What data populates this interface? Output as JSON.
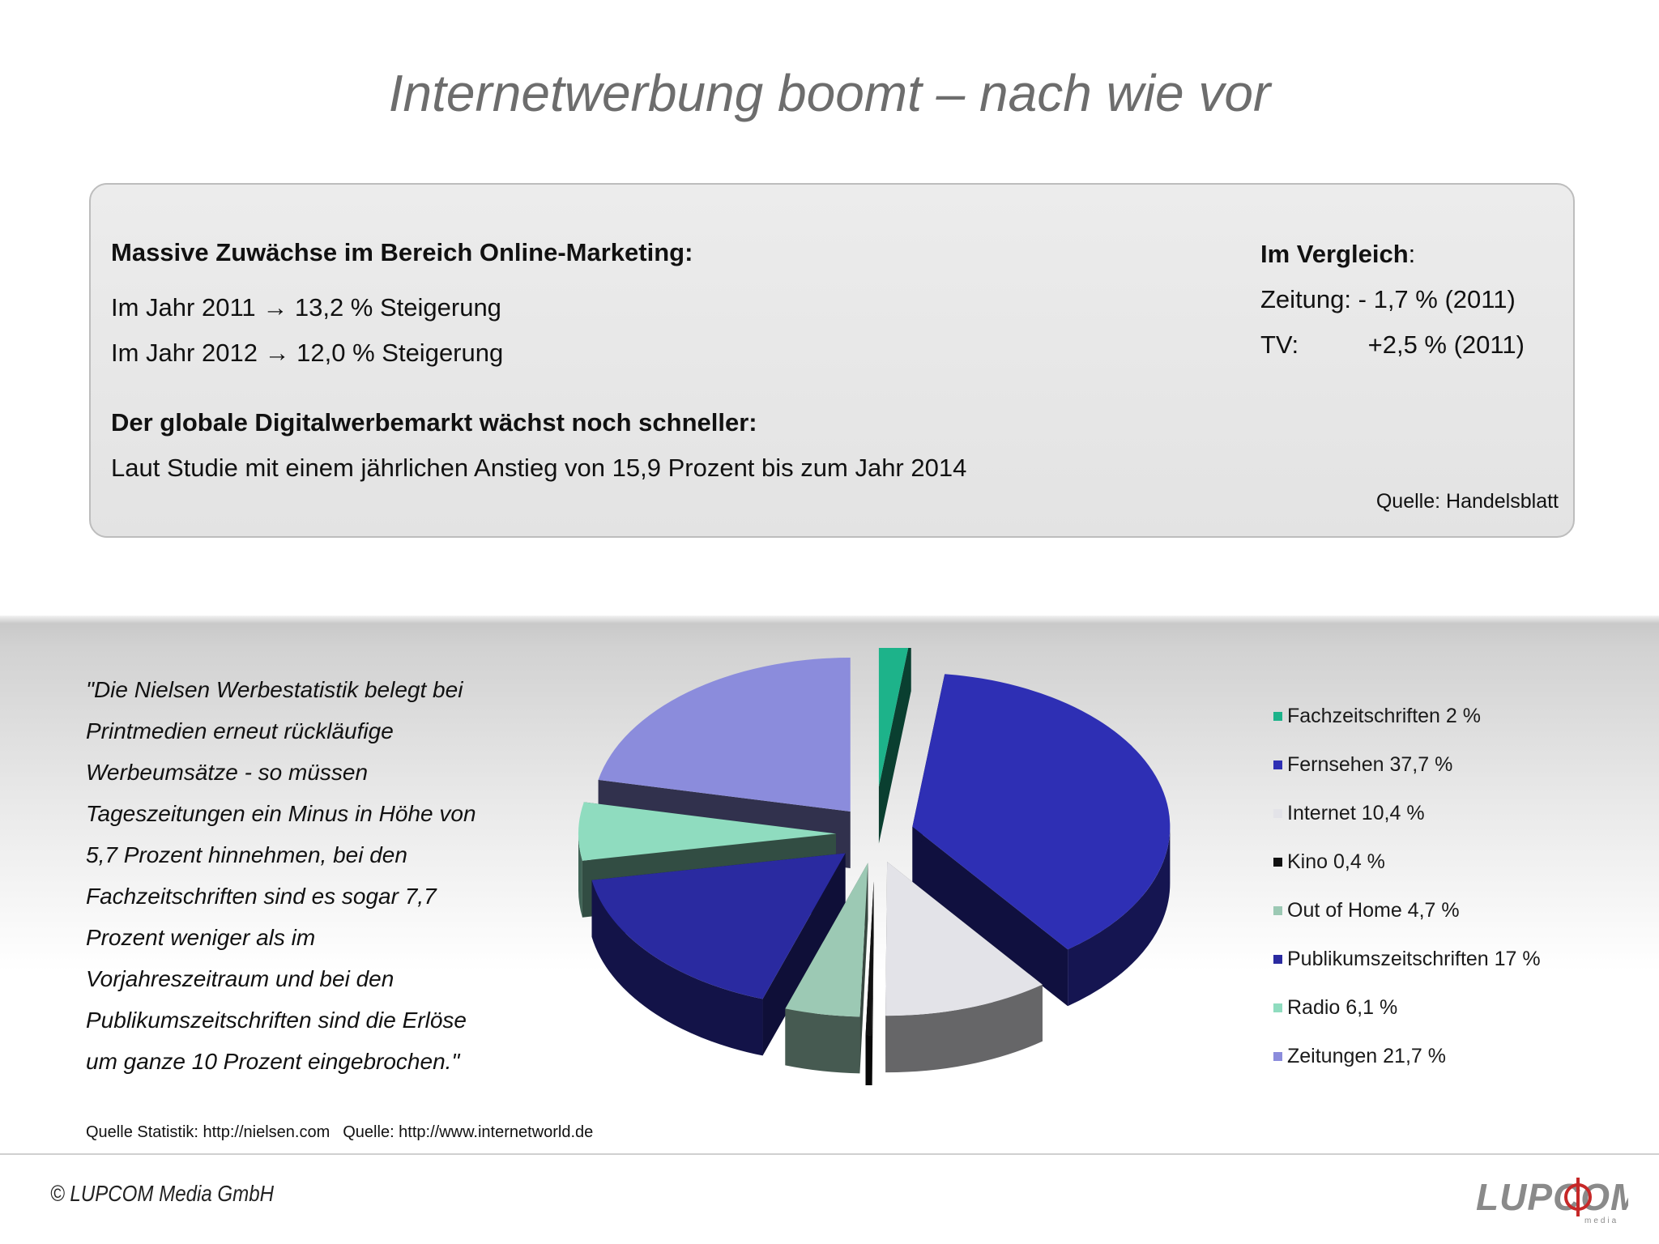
{
  "slide": {
    "title": "Internetwerbung boomt – nach wie vor"
  },
  "info_box": {
    "heading1": "Massive Zuwächse im Bereich Online-Marketing:",
    "line1": "Im Jahr 2011 → 13,2 % Steigerung",
    "line2": "Im Jahr 2012 → 12,0 % Steigerung",
    "heading2": "Der globale Digitalwerbemarkt wächst noch schneller:",
    "line3": "Laut Studie mit einem jährlichen Anstieg von 15,9 Prozent bis zum Jahr 2014",
    "compare_heading": "Im Vergleich",
    "compare_colon": ":",
    "compare_rows": [
      {
        "label": "Zeitung:",
        "value": "- 1,7 % (2011)"
      },
      {
        "label": "TV:",
        "value": "+2,5 % (2011)"
      }
    ],
    "source": "Quelle: Handelsblatt"
  },
  "quote": {
    "lines": [
      "\"Die Nielsen Werbestatistik belegt bei",
      "Printmedien erneut rückläufige",
      "Werbeumsätze - so müssen",
      "Tageszeitungen ein Minus in Höhe von",
      "5,7 Prozent hinnehmen, bei den",
      "Fachzeitschriften sind es sogar 7,7",
      "Prozent weniger als im",
      "Vorjahreszeitraum und bei den",
      "Publikumszeitschriften sind die Erlöse",
      "um ganze 10 Prozent eingebrochen.\""
    ]
  },
  "sources": {
    "statistik": "Quelle Statistik: http://nielsen.com",
    "article": "Quelle: http://www.internetworld.de"
  },
  "footer": {
    "copyright": "© LUPCOM Media GmbH",
    "logo_text": "LUPCOM",
    "logo_sub": "media",
    "logo_accent": "#c62828"
  },
  "chart_data": {
    "type": "pie",
    "style": "3d-exploded",
    "unit": "%",
    "categories": [
      "Fachzeitschriften",
      "Fernsehen",
      "Internet",
      "Kino",
      "Out of Home",
      "Publikumszeitschriften",
      "Radio",
      "Zeitungen"
    ],
    "values": [
      2,
      37.7,
      10.4,
      0.4,
      4.7,
      17,
      6.1,
      21.7
    ],
    "legend_labels": [
      "Fachzeitschriften 2 %",
      "Fernsehen 37,7 %",
      "Internet 10,4 %",
      "Kino 0,4 %",
      "Out of Home 4,7 %",
      "Publikumszeitschriften 17 %",
      "Radio 6,1 %",
      "Zeitungen 21,7 %"
    ],
    "colors": [
      "#1db38a",
      "#2e2fb4",
      "#e3e3e8",
      "#111111",
      "#9cc9b4",
      "#2a2aa0",
      "#8fdcbf",
      "#8b8cdc"
    ],
    "legend_position": "right"
  }
}
